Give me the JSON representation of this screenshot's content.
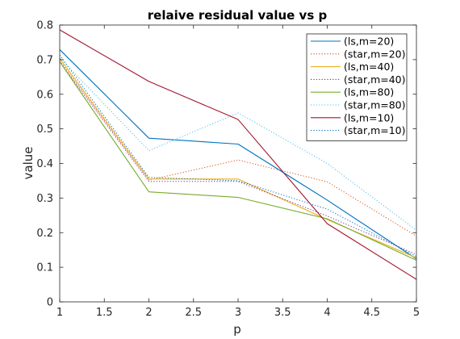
{
  "chart_data": {
    "type": "line",
    "title": "relaive residual value vs p",
    "xlabel": "p",
    "ylabel": "value",
    "xlim": [
      1,
      5
    ],
    "ylim": [
      0,
      0.8
    ],
    "xticks": [
      "1",
      "1.5",
      "2",
      "2.5",
      "3",
      "3.5",
      "4",
      "4.5",
      "5"
    ],
    "yticks": [
      "0",
      "0.1",
      "0.2",
      "0.3",
      "0.4",
      "0.5",
      "0.6",
      "0.7",
      "0.8"
    ],
    "grid": false,
    "legend_position": "top-right",
    "x": [
      1,
      2,
      3,
      4,
      5
    ],
    "series": [
      {
        "name": "(ls,m=20)",
        "values": [
          0.729,
          0.473,
          0.456,
          0.294,
          0.124
        ],
        "color": "#0072BD",
        "style": "solid"
      },
      {
        "name": "(star,m=20)",
        "values": [
          0.697,
          0.352,
          0.41,
          0.347,
          0.19
        ],
        "color": "#D95319",
        "style": "dotted"
      },
      {
        "name": "(ls,m=40)",
        "values": [
          0.703,
          0.355,
          0.355,
          0.238,
          0.127
        ],
        "color": "#EDB120",
        "style": "solid"
      },
      {
        "name": "(star,m=40)",
        "values": [
          0.693,
          0.348,
          0.348,
          0.248,
          0.137
        ],
        "color": "#7E2F8E",
        "style": "dotted"
      },
      {
        "name": "(ls,m=80)",
        "values": [
          0.694,
          0.318,
          0.302,
          0.24,
          0.12
        ],
        "color": "#77AC30",
        "style": "solid"
      },
      {
        "name": "(star,m=80)",
        "values": [
          0.705,
          0.437,
          0.546,
          0.4,
          0.207
        ],
        "color": "#4DBEEE",
        "style": "dotted"
      },
      {
        "name": "(ls,m=10)",
        "values": [
          0.786,
          0.637,
          0.527,
          0.226,
          0.065
        ],
        "color": "#A2142F",
        "style": "solid"
      },
      {
        "name": "(star,m=10)",
        "values": [
          0.713,
          0.36,
          0.35,
          0.268,
          0.131
        ],
        "color": "#0072BD",
        "style": "dotted"
      }
    ]
  }
}
